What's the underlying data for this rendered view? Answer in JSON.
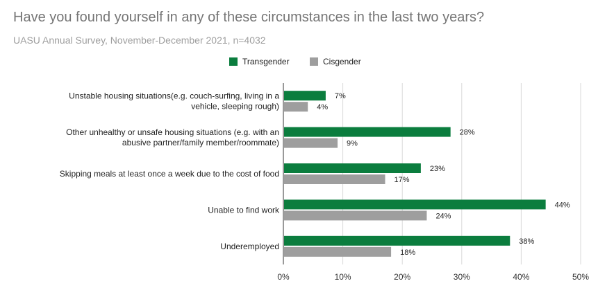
{
  "title": "Have you found yourself in any of these circumstances in the last two years?",
  "subtitle": "UASU Annual Survey, November-December 2021, n=4032",
  "chart_data": {
    "type": "bar",
    "orientation": "horizontal",
    "title": "Have you found yourself in any of these circumstances in the last two years?",
    "subtitle": "UASU Annual Survey, November-December 2021, n=4032",
    "categories": [
      [
        "Unstable housing situations(e.g. couch-surfing, living in a",
        "vehicle, sleeping rough)"
      ],
      [
        "Other unhealthy or unsafe housing situations (e.g. with an",
        "abusive partner/family member/roommate)"
      ],
      [
        "Skipping meals at least once a week due to the cost of food"
      ],
      [
        "Unable to find work"
      ],
      [
        "Underemployed"
      ]
    ],
    "series": [
      {
        "name": "Transgender",
        "color": "#0b7d3e",
        "values": [
          7,
          28,
          23,
          44,
          38
        ],
        "labels": [
          "7%",
          "28%",
          "23%",
          "44%",
          "38%"
        ]
      },
      {
        "name": "Cisgender",
        "color": "#9e9e9e",
        "values": [
          4,
          9,
          17,
          24,
          18
        ],
        "labels": [
          "4%",
          "9%",
          "17%",
          "24%",
          "18%"
        ]
      }
    ],
    "xlim": [
      0,
      50
    ],
    "xticks": [
      "0%",
      "10%",
      "20%",
      "30%",
      "40%",
      "50%"
    ],
    "xtick_values": [
      0,
      10,
      20,
      30,
      40,
      50
    ],
    "grid": "vertical",
    "legend": "top-center",
    "xlabel": "",
    "ylabel": ""
  }
}
